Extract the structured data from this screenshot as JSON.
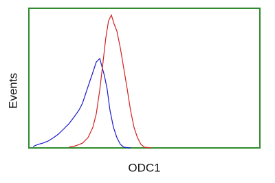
{
  "chart_data": {
    "type": "line",
    "x_label": "ODC1",
    "y_label": "Events",
    "xlim": [
      0,
      100
    ],
    "ylim": [
      0,
      100
    ],
    "series": [
      {
        "color": "#1a1acc",
        "x": [
          1.8,
          3.9,
          6,
          8.3,
          10.7,
          12.8,
          14.9,
          17.3,
          19.6,
          21.7,
          23.2,
          24.7,
          26.2,
          27.7,
          29.2,
          30.7,
          31.5,
          32.7,
          33.9,
          35.1,
          36.6,
          38.1,
          39.6,
          41.1,
          44
        ],
        "values": [
          1,
          2.5,
          3.4,
          4.9,
          7.4,
          9.9,
          13.3,
          17.2,
          22.2,
          27.1,
          32,
          39.4,
          46.8,
          54.2,
          61.6,
          64,
          59.1,
          51.7,
          42,
          27.1,
          14.8,
          7.4,
          2.5,
          0.5,
          0
        ]
      },
      {
        "color": "#d42020",
        "x": [
          17.3,
          20.2,
          23.2,
          25.6,
          27.7,
          29.2,
          30.7,
          32.1,
          33.3,
          34.5,
          35.7,
          36.9,
          38.1,
          39.6,
          41.1,
          42.6,
          44,
          45.5,
          47,
          48.5,
          50,
          53
        ],
        "values": [
          0.5,
          1.5,
          3.4,
          7.4,
          14.8,
          24.6,
          41.9,
          61.6,
          78.8,
          91.1,
          95.1,
          88.7,
          83.7,
          71.4,
          56.7,
          41.9,
          27.1,
          14.8,
          7.4,
          2.5,
          0.5,
          0
        ]
      }
    ]
  }
}
